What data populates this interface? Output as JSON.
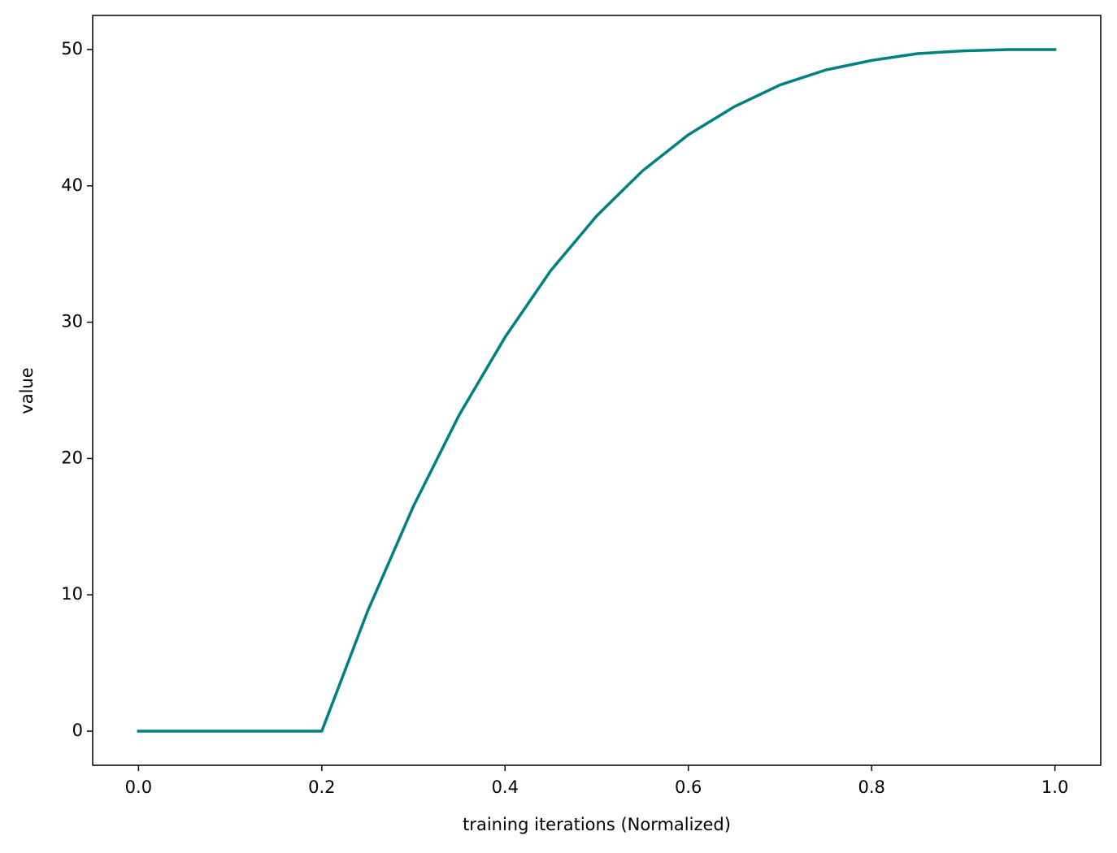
{
  "chart_data": {
    "type": "line",
    "xlabel": "training iterations (Normalized)",
    "ylabel": "value",
    "x": [
      0,
      0.05,
      0.1,
      0.15,
      0.2,
      0.25,
      0.3,
      0.35,
      0.4,
      0.45,
      0.5,
      0.55,
      0.6,
      0.65,
      0.7,
      0.75,
      0.8,
      0.85,
      0.9,
      0.95,
      1.0
    ],
    "values": [
      0,
      0,
      0,
      0,
      0,
      8.8,
      16.5,
      23.2,
      28.9,
      33.8,
      37.8,
      41.1,
      43.75,
      45.8,
      47.4,
      48.5,
      49.2,
      49.7,
      49.9,
      50,
      50
    ],
    "color": "#008080",
    "xlim": [
      -0.05,
      1.05
    ],
    "xticks": [
      {
        "value": 0,
        "label": "0.0"
      },
      {
        "value": 0.2,
        "label": "0.2"
      },
      {
        "value": 0.4,
        "label": "0.4"
      },
      {
        "value": 0.6,
        "label": "0.6"
      },
      {
        "value": 0.8,
        "label": "0.8"
      },
      {
        "value": 1.0,
        "label": "1.0"
      }
    ],
    "ylim": [
      -2.5,
      52.5
    ],
    "yticks": [
      0,
      10,
      20,
      30,
      40,
      50
    ],
    "grid": false
  }
}
